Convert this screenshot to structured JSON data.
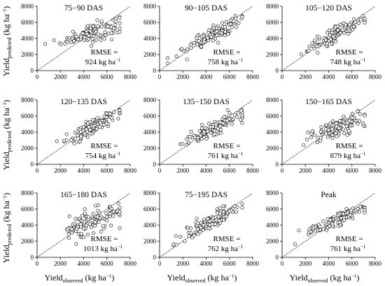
{
  "figure": {
    "y_axis_label": {
      "main": "Yield",
      "sub": "predicted",
      "unit_open": " (kg ha",
      "sup": "−1",
      "unit_close": ")"
    },
    "x_axis_label": {
      "main": "Yield",
      "sub": "observed",
      "unit_open": " (kg ha",
      "sup": "−1",
      "unit_close": ")"
    },
    "rmse_label": "RMSE =",
    "rmse_unit": {
      "text": "kg ha",
      "sup": "−1"
    },
    "colors": {
      "marker_edge": "#000000",
      "marker_fill": "#ffffff",
      "reference_line": "#000000",
      "axis": "#000000"
    }
  },
  "chart_data": [
    {
      "type": "scatter",
      "title": "75−90 DAS",
      "rmse": "924",
      "xlim": [
        0,
        8000
      ],
      "ylim": [
        0,
        8000
      ],
      "xticks": [
        "0",
        "2000",
        "4000",
        "6000",
        "8000"
      ],
      "yticks": [
        "0",
        "2000",
        "4000",
        "6000",
        "8000"
      ],
      "reference_line": "1:1",
      "points_note": "≈120 points; predicted ≈ 2200–6000 across observed ≈ 700–7000"
    },
    {
      "type": "scatter",
      "title": "90−105 DAS",
      "rmse": "758",
      "xlim": [
        0,
        8000
      ],
      "ylim": [
        0,
        8000
      ],
      "xticks": [
        "0",
        "2000",
        "4000",
        "6000",
        "8000"
      ],
      "yticks": [
        "0",
        "2000",
        "4000",
        "6000",
        "8000"
      ],
      "reference_line": "1:1",
      "points_note": "≈120 points; predicted ≈ 1500–6200"
    },
    {
      "type": "scatter",
      "title": "105−120 DAS",
      "rmse": "748",
      "xlim": [
        0,
        8000
      ],
      "ylim": [
        0,
        8000
      ],
      "xticks": [
        "0",
        "2000",
        "4000",
        "6000",
        "8000"
      ],
      "yticks": [
        "0",
        "2000",
        "4000",
        "6000",
        "8000"
      ],
      "reference_line": "1:1",
      "points_note": "≈120 points; predicted ≈ 1200–6200"
    },
    {
      "type": "scatter",
      "title": "120−135 DAS",
      "rmse": "754",
      "xlim": [
        0,
        8000
      ],
      "ylim": [
        0,
        8000
      ],
      "xticks": [
        "0",
        "2000",
        "4000",
        "6000",
        "8000"
      ],
      "yticks": [
        "0",
        "2000",
        "4000",
        "6000",
        "8000"
      ],
      "reference_line": "1:1",
      "points_note": "≈120 points; predicted ≈ 1400–6300"
    },
    {
      "type": "scatter",
      "title": "135−150 DAS",
      "rmse": "761",
      "xlim": [
        0,
        8000
      ],
      "ylim": [
        0,
        8000
      ],
      "xticks": [
        "0",
        "2000",
        "4000",
        "6000",
        "8000"
      ],
      "yticks": [
        "0",
        "2000",
        "4000",
        "6000",
        "8000"
      ],
      "reference_line": "1:1",
      "points_note": "≈120 points; predicted ≈ 1800–6400"
    },
    {
      "type": "scatter",
      "title": "150−165 DAS",
      "rmse": "879",
      "xlim": [
        0,
        8000
      ],
      "ylim": [
        0,
        8000
      ],
      "xticks": [
        "0",
        "2000",
        "4000",
        "6000",
        "8000"
      ],
      "yticks": [
        "0",
        "2000",
        "4000",
        "6000",
        "8000"
      ],
      "reference_line": "1:1",
      "points_note": "≈120 points; predicted ≈ 2000–6500"
    },
    {
      "type": "scatter",
      "title": "165−180 DAS",
      "rmse": "1013",
      "xlim": [
        0,
        8000
      ],
      "ylim": [
        0,
        8000
      ],
      "xticks": [
        "0",
        "2000",
        "4000",
        "6000",
        "8000"
      ],
      "yticks": [
        "0",
        "2000",
        "4000",
        "6000",
        "8000"
      ],
      "reference_line": "1:1",
      "points_note": "≈120 points; predicted ≈ 2200–6200"
    },
    {
      "type": "scatter",
      "title": "75−195 DAS",
      "rmse": "762",
      "xlim": [
        0,
        8000
      ],
      "ylim": [
        0,
        8000
      ],
      "xticks": [
        "0",
        "2000",
        "4000",
        "6000",
        "8000"
      ],
      "yticks": [
        "0",
        "2000",
        "4000",
        "6000",
        "8000"
      ],
      "reference_line": "1:1",
      "points_note": "≈120 points; predicted ≈ 1200–6300"
    },
    {
      "type": "scatter",
      "title": "Peak",
      "rmse": "761",
      "xlim": [
        0,
        8000
      ],
      "ylim": [
        0,
        8000
      ],
      "xticks": [
        "0",
        "2000",
        "4000",
        "6000",
        "8000"
      ],
      "yticks": [
        "0",
        "2000",
        "4000",
        "6000",
        "8000"
      ],
      "reference_line": "1:1",
      "points_note": "≈120 points; predicted ≈ 2000–6200"
    }
  ]
}
